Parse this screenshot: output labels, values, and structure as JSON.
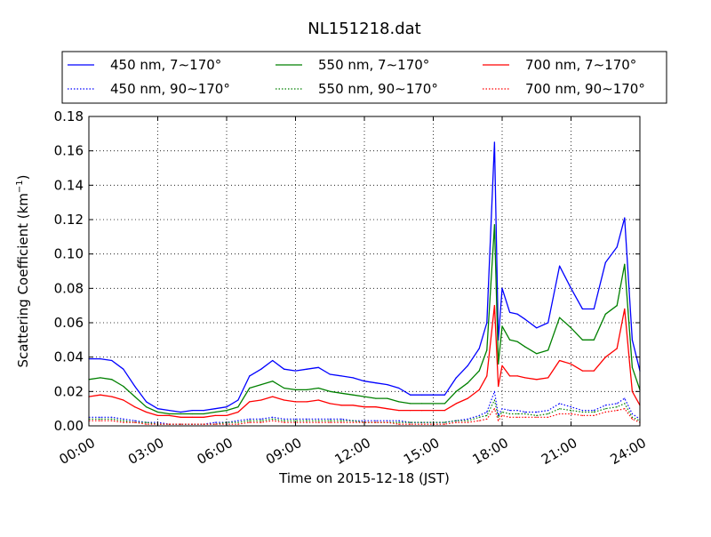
{
  "chart_data": {
    "type": "line",
    "title": "NL151218.dat",
    "xlabel": "Time on 2015-12-18 (JST)",
    "ylabel": "Scattering Coefficient (km",
    "ylabel_sup": "−1",
    "ylabel_end": ")",
    "xlim": [
      "00:00",
      "24:00"
    ],
    "ylim": [
      0,
      0.18
    ],
    "x_ticks": [
      "00:00",
      "03:00",
      "06:00",
      "09:00",
      "12:00",
      "15:00",
      "18:00",
      "21:00",
      "24:00"
    ],
    "y_ticks": [
      "0.00",
      "0.02",
      "0.04",
      "0.06",
      "0.08",
      "0.10",
      "0.12",
      "0.14",
      "0.16",
      "0.18"
    ],
    "grid": true,
    "legend_position": "top",
    "legend": [
      {
        "label": "450 nm, 7∼170°",
        "color": "#0000ff",
        "dash": "solid"
      },
      {
        "label": "550 nm, 7∼170°",
        "color": "#008000",
        "dash": "solid"
      },
      {
        "label": "700 nm, 7∼170°",
        "color": "#ff0000",
        "dash": "solid"
      },
      {
        "label": "450 nm, 90∼170°",
        "color": "#0000ff",
        "dash": "dotted"
      },
      {
        "label": "550 nm, 90∼170°",
        "color": "#008000",
        "dash": "dotted"
      },
      {
        "label": "700 nm, 90∼170°",
        "color": "#ff0000",
        "dash": "dotted"
      }
    ],
    "x": [
      "00:00",
      "00:30",
      "01:00",
      "01:30",
      "02:00",
      "02:30",
      "03:00",
      "03:30",
      "04:00",
      "04:30",
      "05:00",
      "05:30",
      "06:00",
      "06:30",
      "07:00",
      "07:30",
      "08:00",
      "08:30",
      "09:00",
      "09:30",
      "10:00",
      "10:30",
      "11:00",
      "11:30",
      "12:00",
      "12:30",
      "13:00",
      "13:30",
      "14:00",
      "14:30",
      "15:00",
      "15:30",
      "16:00",
      "16:30",
      "17:00",
      "17:20",
      "17:40",
      "17:50",
      "18:00",
      "18:20",
      "18:40",
      "19:00",
      "19:30",
      "20:00",
      "20:30",
      "21:00",
      "21:30",
      "22:00",
      "22:30",
      "23:00",
      "23:20",
      "23:40",
      "24:00"
    ],
    "series": [
      {
        "name": "450 nm, 7∼170°",
        "color": "#0000ff",
        "dash": "solid",
        "values": [
          0.039,
          0.039,
          0.038,
          0.033,
          0.023,
          0.014,
          0.01,
          0.009,
          0.008,
          0.009,
          0.009,
          0.01,
          0.011,
          0.015,
          0.029,
          0.033,
          0.038,
          0.033,
          0.032,
          0.033,
          0.034,
          0.03,
          0.029,
          0.028,
          0.026,
          0.025,
          0.024,
          0.022,
          0.018,
          0.018,
          0.018,
          0.018,
          0.028,
          0.035,
          0.045,
          0.06,
          0.165,
          0.05,
          0.08,
          0.066,
          0.065,
          0.062,
          0.057,
          0.06,
          0.093,
          0.08,
          0.068,
          0.068,
          0.095,
          0.104,
          0.121,
          0.05,
          0.032
        ]
      },
      {
        "name": "550 nm, 7∼170°",
        "color": "#008000",
        "dash": "solid",
        "values": [
          0.027,
          0.028,
          0.027,
          0.023,
          0.017,
          0.011,
          0.008,
          0.007,
          0.007,
          0.007,
          0.007,
          0.008,
          0.009,
          0.011,
          0.022,
          0.024,
          0.026,
          0.022,
          0.021,
          0.021,
          0.022,
          0.02,
          0.019,
          0.018,
          0.017,
          0.016,
          0.016,
          0.014,
          0.013,
          0.013,
          0.013,
          0.013,
          0.02,
          0.025,
          0.032,
          0.044,
          0.117,
          0.036,
          0.058,
          0.05,
          0.049,
          0.046,
          0.042,
          0.044,
          0.063,
          0.057,
          0.05,
          0.05,
          0.065,
          0.07,
          0.094,
          0.034,
          0.021
        ]
      },
      {
        "name": "700 nm, 7∼170°",
        "color": "#ff0000",
        "dash": "solid",
        "values": [
          0.017,
          0.018,
          0.017,
          0.015,
          0.011,
          0.008,
          0.006,
          0.006,
          0.005,
          0.005,
          0.005,
          0.006,
          0.006,
          0.008,
          0.014,
          0.015,
          0.017,
          0.015,
          0.014,
          0.014,
          0.015,
          0.013,
          0.012,
          0.012,
          0.011,
          0.011,
          0.01,
          0.009,
          0.009,
          0.009,
          0.009,
          0.009,
          0.013,
          0.016,
          0.021,
          0.029,
          0.07,
          0.023,
          0.035,
          0.029,
          0.029,
          0.028,
          0.027,
          0.028,
          0.038,
          0.036,
          0.032,
          0.032,
          0.04,
          0.045,
          0.068,
          0.02,
          0.012
        ]
      },
      {
        "name": "450 nm, 90∼170°",
        "color": "#0000ff",
        "dash": "dotted",
        "values": [
          0.005,
          0.005,
          0.005,
          0.004,
          0.003,
          0.002,
          0.002,
          0.001,
          0.001,
          0.001,
          0.001,
          0.002,
          0.002,
          0.003,
          0.004,
          0.004,
          0.005,
          0.004,
          0.004,
          0.004,
          0.004,
          0.004,
          0.004,
          0.003,
          0.003,
          0.003,
          0.003,
          0.003,
          0.002,
          0.002,
          0.002,
          0.002,
          0.003,
          0.004,
          0.006,
          0.008,
          0.02,
          0.006,
          0.01,
          0.009,
          0.009,
          0.008,
          0.008,
          0.009,
          0.013,
          0.011,
          0.009,
          0.009,
          0.012,
          0.013,
          0.016,
          0.007,
          0.004
        ]
      },
      {
        "name": "550 nm, 90∼170°",
        "color": "#008000",
        "dash": "dotted",
        "values": [
          0.004,
          0.004,
          0.004,
          0.003,
          0.002,
          0.002,
          0.001,
          0.001,
          0.001,
          0.001,
          0.001,
          0.001,
          0.002,
          0.002,
          0.003,
          0.003,
          0.004,
          0.003,
          0.003,
          0.003,
          0.003,
          0.003,
          0.003,
          0.003,
          0.002,
          0.002,
          0.002,
          0.002,
          0.002,
          0.002,
          0.002,
          0.002,
          0.003,
          0.003,
          0.005,
          0.006,
          0.015,
          0.005,
          0.008,
          0.007,
          0.007,
          0.007,
          0.006,
          0.007,
          0.01,
          0.009,
          0.008,
          0.008,
          0.01,
          0.011,
          0.013,
          0.005,
          0.003
        ]
      },
      {
        "name": "700 nm, 90∼170°",
        "color": "#ff0000",
        "dash": "dotted",
        "values": [
          0.003,
          0.003,
          0.003,
          0.002,
          0.002,
          0.001,
          0.001,
          0.001,
          0.001,
          0.001,
          0.001,
          0.001,
          0.001,
          0.001,
          0.002,
          0.002,
          0.003,
          0.002,
          0.002,
          0.002,
          0.002,
          0.002,
          0.002,
          0.002,
          0.002,
          0.002,
          0.002,
          0.001,
          0.001,
          0.001,
          0.001,
          0.001,
          0.002,
          0.002,
          0.003,
          0.004,
          0.01,
          0.003,
          0.006,
          0.005,
          0.005,
          0.005,
          0.005,
          0.005,
          0.007,
          0.007,
          0.006,
          0.006,
          0.008,
          0.009,
          0.01,
          0.004,
          0.002
        ]
      }
    ]
  }
}
